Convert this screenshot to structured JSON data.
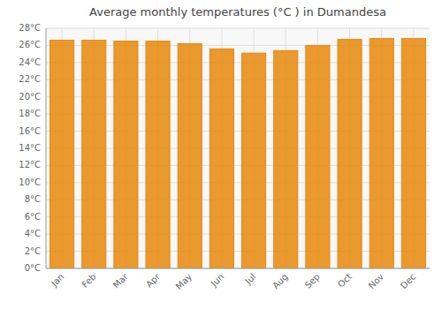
{
  "chart_data": {
    "type": "bar",
    "title": "Average monthly temperatures (°C ) in Dumandesa",
    "categories": [
      "Jan",
      "Feb",
      "Mar",
      "Apr",
      "May",
      "Jun",
      "Jul",
      "Aug",
      "Sep",
      "Oct",
      "Nov",
      "Dec"
    ],
    "values": [
      26.6,
      26.6,
      26.5,
      26.5,
      26.2,
      25.6,
      25.1,
      25.4,
      26.0,
      26.7,
      26.8,
      26.8
    ],
    "color": "#E8880A",
    "ylim": [
      0,
      28
    ],
    "yticks": [
      {
        "value": 0,
        "label": "0°C"
      },
      {
        "value": 2,
        "label": "2°C"
      },
      {
        "value": 4,
        "label": "4°C"
      },
      {
        "value": 6,
        "label": "6°C"
      },
      {
        "value": 8,
        "label": "8°C"
      },
      {
        "value": 10,
        "label": "10°C"
      },
      {
        "value": 12,
        "label": "12°C"
      },
      {
        "value": 14,
        "label": "14°C"
      },
      {
        "value": 16,
        "label": "16°C"
      },
      {
        "value": 18,
        "label": "18°C"
      },
      {
        "value": 20,
        "label": "20°C"
      },
      {
        "value": 22,
        "label": "22°C"
      },
      {
        "value": 24,
        "label": "24°C"
      },
      {
        "value": 26,
        "label": "26°C"
      },
      {
        "value": 28,
        "label": "28°C"
      }
    ],
    "grid": true
  }
}
